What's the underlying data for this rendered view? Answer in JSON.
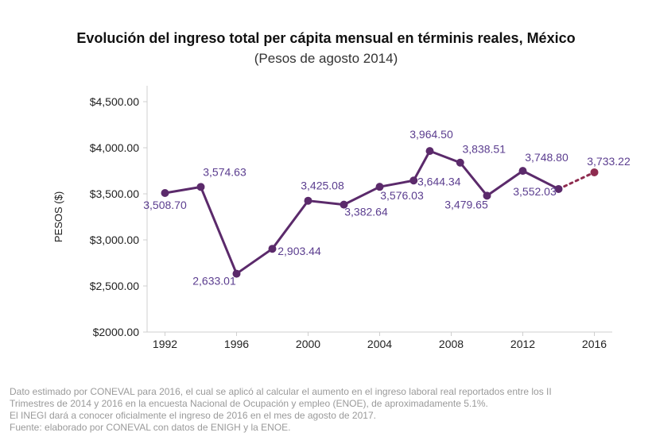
{
  "chart_data": {
    "type": "line",
    "title": "Evolución del ingreso total per cápita mensual en términis reales, México",
    "subtitle": "(Pesos de agosto 2014)",
    "ylabel": "PESOS ($)",
    "xlabel": "",
    "ylim": [
      2000,
      4500
    ],
    "xlim": [
      1991,
      2017
    ],
    "y_ticks": [
      4500,
      4000,
      3500,
      3000,
      2500,
      2000
    ],
    "y_tick_labels": [
      "$4,500.00",
      "$4,000.00",
      "$3,500.00",
      "$3,000.00",
      "$2,500.00",
      "$2000.00"
    ],
    "x_ticks": [
      1992,
      1996,
      2000,
      2004,
      2008,
      2012,
      2016
    ],
    "x_tick_labels": [
      "1992",
      "1996",
      "2000",
      "2004",
      "2008",
      "2012",
      "2016"
    ],
    "grid": false,
    "series": [
      {
        "color": "#5b2a6b",
        "x": [
          1992,
          1994,
          1996,
          1998,
          2000,
          2002,
          2004,
          2005.9,
          2006.8,
          2008.5,
          2010,
          2012,
          2014
        ],
        "values": [
          3508.7,
          3574.63,
          2633.01,
          2903.44,
          3425.08,
          3382.64,
          3576.03,
          3644.34,
          3964.5,
          3838.51,
          3479.65,
          3748.8,
          3552.03
        ],
        "labels": [
          "3,508.70",
          "3,574.63",
          "2,633.01",
          "2,903.44",
          "3,425.08",
          "3,382.64",
          "3,576.03",
          "3,644.34",
          "3,964.50",
          "3,838.51",
          "3,479.65",
          "3,748.80",
          "3,552.03"
        ]
      },
      {
        "color": "#8e2b4f",
        "style": "dotted",
        "x": [
          2014,
          2016
        ],
        "values": [
          3552.03,
          3733.22
        ],
        "labels": [
          "",
          "3,733.22"
        ]
      }
    ],
    "label_color": "#5b3d8f"
  },
  "footnotes": [
    "Dato estimado por CONEVAL para 2016, el cual se aplicó al calcular el aumento en el ingreso laboral real reportados entre los II",
    "Trimestres de 2014 y 2016 en la encuesta Nacional de Ocupación y empleo (ENOE), de aproximadamente 5.1%.",
    "El INEGI dará a conocer oficialmente el ingreso de 2016 en el mes de agosto de 2017.",
    "Fuente: elaborado por CONEVAL con datos de ENIGH y la ENOE."
  ]
}
